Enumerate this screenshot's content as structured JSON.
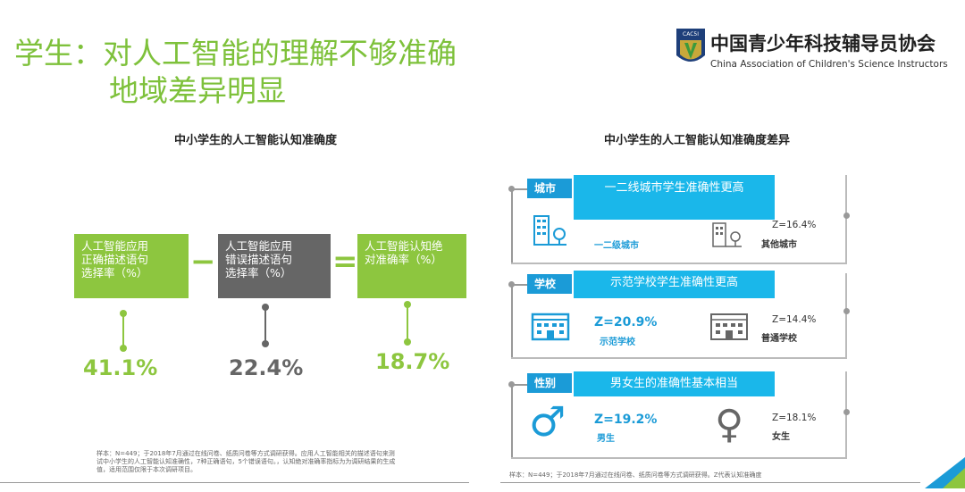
{
  "header": {
    "title_line1": "学生：对人工智能的理解不够准确",
    "title_line2": "地域差异明显",
    "org_name": "中国青少年科技辅导员协会",
    "org_name_en": "China Association of Children's Science Instructors",
    "logo_text": "CAC5I"
  },
  "left": {
    "chart_title": "中小学生的人工智能认知准确度",
    "box1": "人工智能应用\n正确描述语句\n选择率（%）",
    "box2": "人工智能应用\n错误描述语句\n选择率（%）",
    "box3": "人工智能认知绝\n对准确率（%）",
    "op_minus": "−",
    "op_equals": "=",
    "value1": "41.1%",
    "value2": "22.4%",
    "value3": "18.7%",
    "note": "样本：N=449；于2018年7月通过在线问卷、纸质问卷等方式调研获得。应用人工智能相关的描述语句来测试中小学生的人工智能认知准确性，7种正确语句，5个错误语句。，认知绝对准确率指标为为调研结果的生成值，适用范围仅限于本次调研项目。"
  },
  "right": {
    "chart_title": "中小学生的人工智能认知准确度差异",
    "city": {
      "tag": "城市",
      "banner": "一二线城市学生准确性更高",
      "left_caption": "一二级城市",
      "right_value": "Z=16.4%",
      "right_caption": "其他城市"
    },
    "school": {
      "tag": "学校",
      "banner": "示范学校学生准确性更高",
      "left_value": "Z=20.9%",
      "left_caption": "示范学校",
      "right_value": "Z=14.4%",
      "right_caption": "普通学校"
    },
    "gender": {
      "tag": "性别",
      "banner": "男女生的准确性基本相当",
      "left_value": "Z=19.2%",
      "left_caption": "男生",
      "right_value": "Z=18.1%",
      "right_caption": "女生",
      "male_symbol": "♂",
      "female_symbol": "♀"
    },
    "note": "样本：N=449；于2018年7月通过在线问卷、纸质问卷等方式调研获得。Z代表认知准确度"
  },
  "colors": {
    "green": "#8dc63f",
    "gray_box": "#666666",
    "blue_tag": "#1b9bd7",
    "blue_banner": "#1ab7ea",
    "title_green": "#7ec13b"
  }
}
